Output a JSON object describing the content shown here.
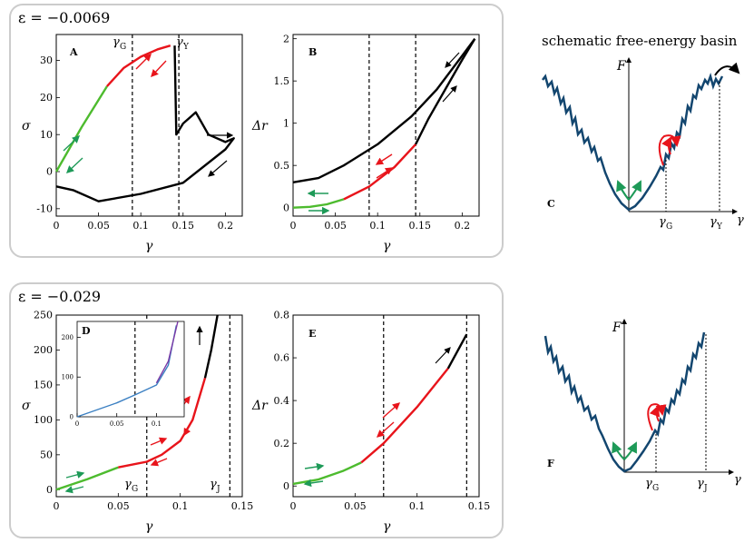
{
  "colors": {
    "black": "#000000",
    "red": "#e8141b",
    "green": "#4dbb2e",
    "arrow_green": "#1e9a58",
    "navy": "#13466f",
    "blue": "#3a7fc2",
    "purple": "#7b3aa6",
    "box": "#cccccc"
  },
  "top_row": {
    "epsilon_label": "ε = −0.0069"
  },
  "bottom_row": {
    "epsilon_label": "ε = −0.029"
  },
  "schematic_title": "schematic free-energy basin",
  "chart_data": [
    {
      "id": "A",
      "type": "line",
      "panel_label": "A",
      "xlabel": "γ",
      "ylabel": "σ",
      "xlim": [
        0,
        0.22
      ],
      "ylim": [
        -12,
        37
      ],
      "xticks": [
        0,
        0.05,
        0.1,
        0.15,
        0.2
      ],
      "xtick_labels": [
        "0",
        "0.05",
        "0.1",
        "0.15",
        "0.2"
      ],
      "yticks": [
        -10,
        0,
        10,
        20,
        30
      ],
      "ytick_labels": [
        "-10",
        "0",
        "10",
        "20",
        "30"
      ],
      "vlines": [
        {
          "x": 0.09,
          "label_main": "γ",
          "label_sub": "G"
        },
        {
          "x": 0.145,
          "label_main": "γ",
          "label_sub": "Y"
        }
      ],
      "series": [
        {
          "name": "green",
          "color": "#4dbb2e",
          "x": [
            0,
            0.03,
            0.06
          ],
          "y": [
            0,
            12,
            23
          ]
        },
        {
          "name": "red",
          "color": "#e8141b",
          "x": [
            0.06,
            0.08,
            0.1,
            0.12,
            0.135
          ],
          "y": [
            23,
            28,
            31,
            33,
            34
          ]
        },
        {
          "name": "black",
          "color": "#000000",
          "x": [
            0.14,
            0.142,
            0.15,
            0.165,
            0.18,
            0.2,
            0.21,
            0.2,
            0.15,
            0.1,
            0.05,
            0.02,
            0
          ],
          "y": [
            34,
            10,
            13,
            16,
            10,
            8,
            9,
            6,
            -3,
            -6,
            -8,
            -5,
            -4
          ]
        }
      ]
    },
    {
      "id": "B",
      "type": "line",
      "panel_label": "B",
      "xlabel": "γ",
      "ylabel": "Δr",
      "xlim": [
        0,
        0.22
      ],
      "ylim": [
        -0.1,
        2.05
      ],
      "xticks": [
        0,
        0.05,
        0.1,
        0.15,
        0.2
      ],
      "xtick_labels": [
        "0",
        "0.05",
        "0.1",
        "0.15",
        "0.2"
      ],
      "yticks": [
        0,
        0.5,
        1,
        1.5,
        2
      ],
      "ytick_labels": [
        "0",
        "0.5",
        "1",
        "1.5",
        "2"
      ],
      "vlines": [
        {
          "x": 0.09
        },
        {
          "x": 0.145
        }
      ],
      "series": [
        {
          "name": "green",
          "color": "#4dbb2e",
          "x": [
            0,
            0.02,
            0.04,
            0.06
          ],
          "y": [
            0.0,
            0.01,
            0.04,
            0.1
          ]
        },
        {
          "name": "red",
          "color": "#e8141b",
          "x": [
            0.06,
            0.09,
            0.12,
            0.145
          ],
          "y": [
            0.1,
            0.25,
            0.48,
            0.75
          ]
        },
        {
          "name": "black-up",
          "color": "#000000",
          "x": [
            0.145,
            0.16,
            0.18,
            0.2,
            0.215
          ],
          "y": [
            0.75,
            1.05,
            1.4,
            1.75,
            2.0
          ]
        },
        {
          "name": "black-down",
          "color": "#000000",
          "x": [
            0.215,
            0.2,
            0.17,
            0.14,
            0.1,
            0.06,
            0.03,
            0
          ],
          "y": [
            2.0,
            1.8,
            1.4,
            1.08,
            0.75,
            0.5,
            0.35,
            0.3
          ]
        }
      ]
    },
    {
      "id": "C",
      "type": "line",
      "panel_label": "C",
      "axis_labels": {
        "y": "F",
        "x": "γ"
      },
      "markers": [
        {
          "main": "γ",
          "sub": "G"
        },
        {
          "main": "γ",
          "sub": "Y"
        }
      ]
    },
    {
      "id": "D",
      "type": "line",
      "panel_label": "D",
      "xlim": [
        0,
        0.135
      ],
      "ylim": [
        0,
        240
      ],
      "xticks": [
        0,
        0.05,
        0.1
      ],
      "xtick_labels": [
        "0",
        "0.05",
        "0.1"
      ],
      "yticks": [
        0,
        100,
        200
      ],
      "ytick_labels": [
        "0",
        "100",
        "200"
      ],
      "vlines": [
        {
          "x": 0.073
        }
      ],
      "series": [
        {
          "name": "blue",
          "color": "#3a7fc2",
          "x": [
            0,
            0.05,
            0.073,
            0.1,
            0.115,
            0.125
          ],
          "y": [
            0,
            35,
            55,
            80,
            130,
            230
          ]
        },
        {
          "name": "purple",
          "color": "#7b3aa6",
          "x": [
            0.1,
            0.115,
            0.127
          ],
          "y": [
            85,
            140,
            240
          ]
        }
      ]
    },
    {
      "id": "E",
      "type": "line",
      "panel_label": "E",
      "xlabel": "γ",
      "ylabel": "Δr",
      "xlim": [
        0,
        0.15
      ],
      "ylim": [
        -0.05,
        0.8
      ],
      "xticks": [
        0,
        0.05,
        0.1,
        0.15
      ],
      "xtick_labels": [
        "0",
        "0.05",
        "0.1",
        "0.15"
      ],
      "yticks": [
        0,
        0.2,
        0.4,
        0.6,
        0.8
      ],
      "ytick_labels": [
        "0",
        "0.2",
        "0.4",
        "0.6",
        "0.8"
      ],
      "vlines": [
        {
          "x": 0.073
        },
        {
          "x": 0.14
        }
      ],
      "series": [
        {
          "name": "green",
          "color": "#4dbb2e",
          "x": [
            0,
            0.02,
            0.04,
            0.055
          ],
          "y": [
            0.01,
            0.03,
            0.07,
            0.11
          ]
        },
        {
          "name": "red",
          "color": "#e8141b",
          "x": [
            0.055,
            0.073,
            0.1,
            0.125
          ],
          "y": [
            0.11,
            0.2,
            0.37,
            0.55
          ]
        },
        {
          "name": "black",
          "color": "#000000",
          "x": [
            0.125,
            0.14
          ],
          "y": [
            0.55,
            0.71
          ]
        }
      ]
    },
    {
      "id": "F",
      "type": "line",
      "panel_label": "F",
      "axis_labels": {
        "y": "F",
        "x": "γ"
      },
      "markers": [
        {
          "main": "γ",
          "sub": "G"
        },
        {
          "main": "γ",
          "sub": "J"
        }
      ]
    },
    {
      "id": "G",
      "type": "line",
      "xlabel": "γ",
      "ylabel": "σ",
      "xlim": [
        0,
        0.15
      ],
      "ylim": [
        -10,
        250
      ],
      "xticks": [
        0,
        0.05,
        0.1,
        0.15
      ],
      "xtick_labels": [
        "0",
        "0.05",
        "0.1",
        "0.15"
      ],
      "yticks": [
        0,
        50,
        100,
        150,
        200,
        250
      ],
      "ytick_labels": [
        "0",
        "50",
        "100",
        "150",
        "200",
        "250"
      ],
      "vlines": [
        {
          "x": 0.073,
          "label_main": "γ",
          "label_sub": "G"
        },
        {
          "x": 0.14,
          "label_main": "γ",
          "label_sub": "J"
        }
      ],
      "series": [
        {
          "name": "green",
          "color": "#4dbb2e",
          "x": [
            0,
            0.025,
            0.05
          ],
          "y": [
            0,
            15,
            32
          ]
        },
        {
          "name": "red",
          "color": "#e8141b",
          "x": [
            0.05,
            0.073,
            0.085,
            0.1,
            0.11,
            0.12
          ],
          "y": [
            32,
            40,
            50,
            70,
            100,
            160
          ]
        },
        {
          "name": "black",
          "color": "#000000",
          "x": [
            0.12,
            0.125,
            0.13
          ],
          "y": [
            160,
            200,
            250
          ]
        }
      ]
    }
  ]
}
